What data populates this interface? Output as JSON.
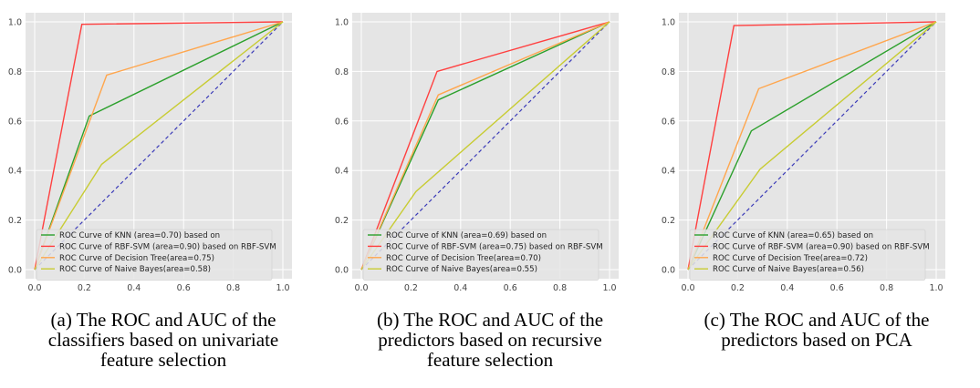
{
  "chart_data": [
    {
      "type": "line",
      "caption": [
        "(a) The ROC and AUC of the",
        "classifiers based on univariate",
        "feature selection"
      ],
      "xlim": [
        0,
        1
      ],
      "ylim": [
        0,
        1
      ],
      "xticks": [
        "0.0",
        "0.2",
        "0.4",
        "0.6",
        "0.8",
        "1.0"
      ],
      "yticks": [
        "0.0",
        "0.2",
        "0.4",
        "0.6",
        "0.8",
        "1.0"
      ],
      "grid": true,
      "legend_position": "lower-left",
      "diagonal": {
        "x": [
          0,
          1
        ],
        "y": [
          0,
          1
        ],
        "style": "dashed",
        "color": "#3a3ab8"
      },
      "series": [
        {
          "name": "ROC Curve of KNN (area=0.70) based on",
          "color": "#2ca02c",
          "x": [
            0,
            0.22,
            1
          ],
          "y": [
            0,
            0.62,
            1
          ]
        },
        {
          "name": "ROC Curve of RBF-SVM (area=0.90) based on RBF-SVM",
          "color": "#ff4040",
          "x": [
            0,
            0.19,
            1
          ],
          "y": [
            0,
            0.99,
            1
          ]
        },
        {
          "name": "ROC Curve of Decision Tree(area=0.75)",
          "color": "#ffa64d",
          "x": [
            0,
            0.29,
            1
          ],
          "y": [
            0,
            0.785,
            1
          ]
        },
        {
          "name": "ROC Curve of Naive Bayes(area=0.58)",
          "color": "#c8cc33",
          "x": [
            0,
            0.27,
            1
          ],
          "y": [
            0,
            0.425,
            1
          ]
        }
      ]
    },
    {
      "type": "line",
      "caption": [
        "(b) The ROC and AUC of the",
        "predictors based on recursive",
        "feature selection"
      ],
      "xlim": [
        0,
        1
      ],
      "ylim": [
        0,
        1
      ],
      "xticks": [
        "0.0",
        "0.2",
        "0.4",
        "0.6",
        "0.8",
        "1.0"
      ],
      "yticks": [
        "0.0",
        "0.2",
        "0.4",
        "0.6",
        "0.8",
        "1.0"
      ],
      "grid": true,
      "legend_position": "lower-left",
      "diagonal": {
        "x": [
          0,
          1
        ],
        "y": [
          0,
          1
        ],
        "style": "dashed",
        "color": "#3a3ab8"
      },
      "series": [
        {
          "name": "ROC Curve of KNN (area=0.69) based on",
          "color": "#2ca02c",
          "x": [
            0,
            0.31,
            1
          ],
          "y": [
            0,
            0.685,
            1
          ]
        },
        {
          "name": "ROC Curve of RBF-SVM (area=0.75) based on RBF-SVM",
          "color": "#ff4040",
          "x": [
            0,
            0.305,
            1
          ],
          "y": [
            0,
            0.8,
            1
          ]
        },
        {
          "name": "ROC Curve of Decision Tree(area=0.70)",
          "color": "#ffa64d",
          "x": [
            0,
            0.31,
            1
          ],
          "y": [
            0,
            0.705,
            1
          ]
        },
        {
          "name": "ROC Curve of Naive Bayes(area=0.55)",
          "color": "#c8cc33",
          "x": [
            0,
            0.22,
            1
          ],
          "y": [
            0,
            0.315,
            1
          ]
        }
      ]
    },
    {
      "type": "line",
      "caption": [
        "(c) The ROC and AUC of the",
        "predictors based on PCA"
      ],
      "xlim": [
        0,
        1
      ],
      "ylim": [
        0,
        1
      ],
      "xticks": [
        "0.0",
        "0.2",
        "0.4",
        "0.6",
        "0.8",
        "1.0"
      ],
      "yticks": [
        "0.0",
        "0.2",
        "0.4",
        "0.6",
        "0.8",
        "1.0"
      ],
      "grid": true,
      "legend_position": "lower-left",
      "diagonal": {
        "x": [
          0,
          1
        ],
        "y": [
          0,
          1
        ],
        "style": "dashed",
        "color": "#3a3ab8"
      },
      "series": [
        {
          "name": "ROC Curve of KNN (area=0.65) based on",
          "color": "#2ca02c",
          "x": [
            0,
            0.255,
            1
          ],
          "y": [
            0,
            0.56,
            1
          ]
        },
        {
          "name": "ROC Curve of RBF-SVM (area=0.90) based on RBF-SVM",
          "color": "#ff4040",
          "x": [
            0,
            0.185,
            1
          ],
          "y": [
            0,
            0.985,
            1
          ]
        },
        {
          "name": "ROC Curve of Decision Tree(area=0.72)",
          "color": "#ffa64d",
          "x": [
            0,
            0.285,
            1
          ],
          "y": [
            0,
            0.73,
            1
          ]
        },
        {
          "name": "ROC Curve of Naive Bayes(area=0.56)",
          "color": "#c8cc33",
          "x": [
            0,
            0.29,
            1
          ],
          "y": [
            0,
            0.405,
            1
          ]
        }
      ]
    }
  ]
}
